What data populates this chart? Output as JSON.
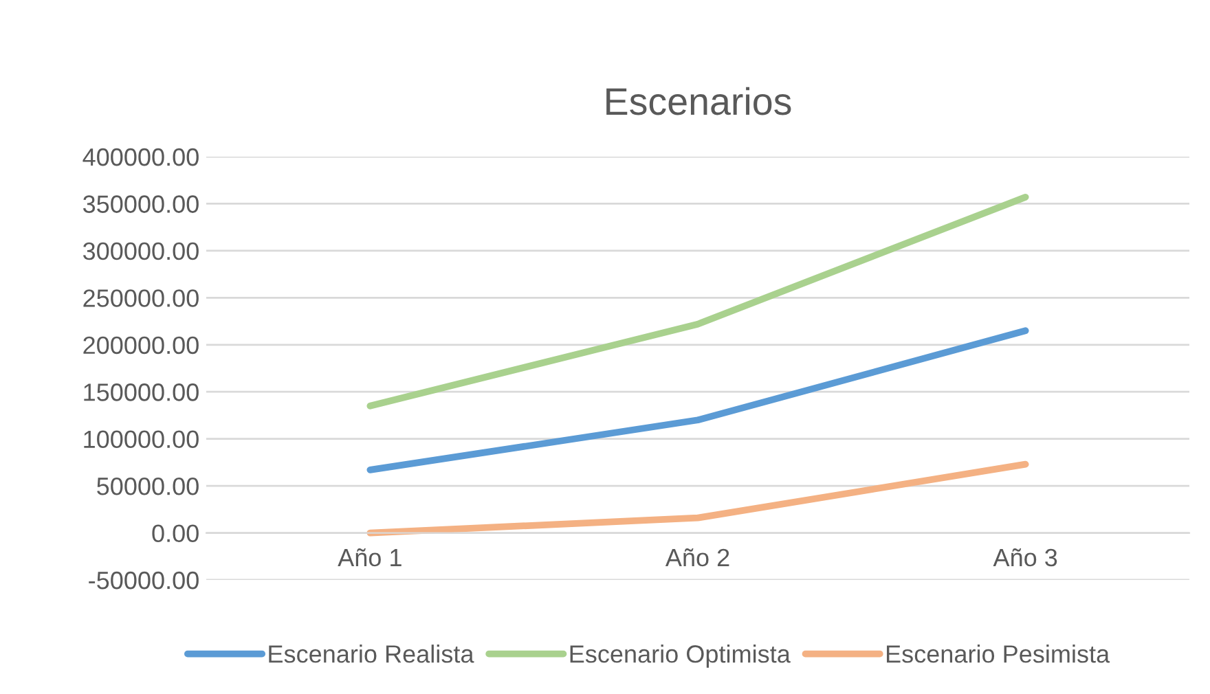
{
  "chart_data": {
    "type": "line",
    "title": "Escenarios",
    "categories": [
      "Año 1",
      "Año 2",
      "Año 3"
    ],
    "series": [
      {
        "name": "Escenario Realista",
        "color": "#5b9bd5",
        "values": [
          67000,
          120000,
          215000
        ]
      },
      {
        "name": "Escenario Optimista",
        "color": "#a9d18e",
        "values": [
          135000,
          222000,
          357000
        ]
      },
      {
        "name": "Escenario Pesimista",
        "color": "#f4b183",
        "values": [
          0,
          16000,
          73000
        ]
      }
    ],
    "ylim": [
      -50000,
      400000
    ],
    "yticks": [
      {
        "value": -50000,
        "label": "-50000.00"
      },
      {
        "value": 0,
        "label": "0.00"
      },
      {
        "value": 50000,
        "label": "50000.00"
      },
      {
        "value": 100000,
        "label": "100000.00"
      },
      {
        "value": 150000,
        "label": "150000.00"
      },
      {
        "value": 200000,
        "label": "200000.00"
      },
      {
        "value": 250000,
        "label": "250000.00"
      },
      {
        "value": 300000,
        "label": "300000.00"
      },
      {
        "value": 350000,
        "label": "350000.00"
      },
      {
        "value": 400000,
        "label": "400000.00"
      }
    ],
    "grid": "y",
    "legend": "bottom",
    "marker": "none",
    "line_style": "solid"
  }
}
